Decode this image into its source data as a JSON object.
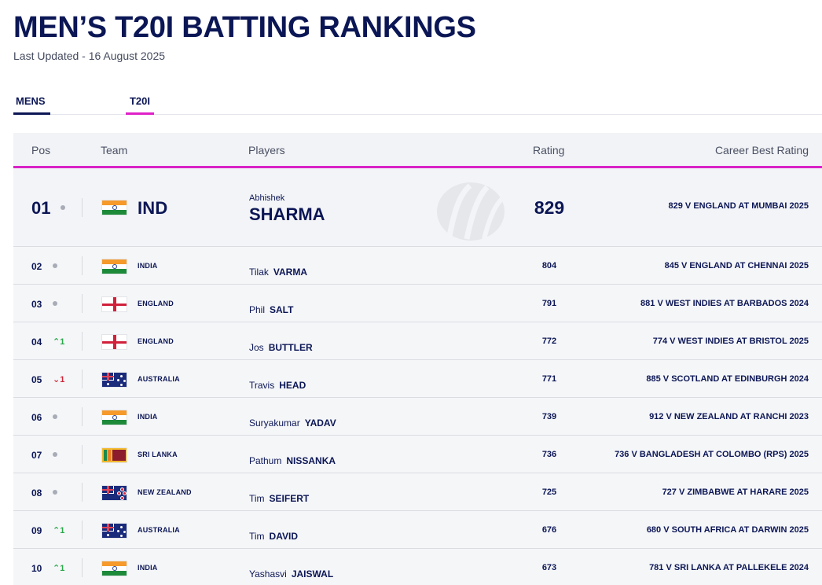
{
  "page": {
    "title": "MEN’S T20I BATTING RANKINGS",
    "last_updated": "Last Updated - 16 August 2025"
  },
  "tabs": [
    {
      "label": "MENS",
      "active": true
    },
    {
      "label": "T20I",
      "active": true
    }
  ],
  "table": {
    "headers": {
      "pos": "Pos",
      "team": "Team",
      "players": "Players",
      "rating": "Rating",
      "career": "Career Best Rating"
    },
    "top": {
      "pos": "01",
      "movement": "",
      "team": "IND",
      "flag": "india",
      "first_name": "Abhishek",
      "last_name": "SHARMA",
      "rating": "829",
      "career_best": "829 V ENGLAND AT MUMBAI 2025"
    },
    "rows": [
      {
        "pos": "02",
        "movement": "",
        "team": "INDIA",
        "flag": "india",
        "first_name": "Tilak",
        "last_name": "VARMA",
        "rating": "804",
        "career_best": "845 V ENGLAND AT CHENNAI 2025"
      },
      {
        "pos": "03",
        "movement": "",
        "team": "ENGLAND",
        "flag": "england",
        "first_name": "Phil",
        "last_name": "SALT",
        "rating": "791",
        "career_best": "881 V WEST INDIES AT BARBADOS 2024"
      },
      {
        "pos": "04",
        "movement": "1",
        "team": "ENGLAND",
        "flag": "england",
        "first_name": "Jos",
        "last_name": "BUTTLER",
        "rating": "772",
        "career_best": "774 V WEST INDIES AT BRISTOL 2025"
      },
      {
        "pos": "05",
        "movement": "1",
        "team": "AUSTRALIA",
        "flag": "australia",
        "first_name": "Travis",
        "last_name": "HEAD",
        "rating": "771",
        "career_best": "885 V SCOTLAND AT EDINBURGH 2024"
      },
      {
        "pos": "06",
        "movement": "",
        "team": "INDIA",
        "flag": "india",
        "first_name": "Suryakumar",
        "last_name": "YADAV",
        "rating": "739",
        "career_best": "912 V NEW ZEALAND AT RANCHI 2023"
      },
      {
        "pos": "07",
        "movement": "",
        "team": "SRI LANKA",
        "flag": "sri-lanka",
        "first_name": "Pathum",
        "last_name": "NISSANKA",
        "rating": "736",
        "career_best": "736 V BANGLADESH AT COLOMBO (RPS) 2025"
      },
      {
        "pos": "08",
        "movement": "",
        "team": "NEW ZEALAND",
        "flag": "new-zealand",
        "first_name": "Tim",
        "last_name": "SEIFERT",
        "rating": "725",
        "career_best": "727 V ZIMBABWE AT HARARE 2025"
      },
      {
        "pos": "09",
        "movement": "1",
        "team": "AUSTRALIA",
        "flag": "australia",
        "first_name": "Tim",
        "last_name": "DAVID",
        "rating": "676",
        "career_best": "680 V SOUTH AFRICA AT DARWIN 2025"
      },
      {
        "pos": "10",
        "movement": "1",
        "team": "INDIA",
        "flag": "india",
        "first_name": "Yashasvi",
        "last_name": "JAISWAL",
        "rating": "673",
        "career_best": "781 V SRI LANKA AT PALLEKELE 2024"
      }
    ],
    "movement_icons": [
      "none",
      "none",
      "up",
      "down",
      "none",
      "none",
      "none",
      "up",
      "up"
    ]
  },
  "colors": {
    "navy": "#0b1655",
    "accent_magenta": "#d922c7",
    "up_green": "#2aa84a",
    "down_red": "#d0283a"
  }
}
